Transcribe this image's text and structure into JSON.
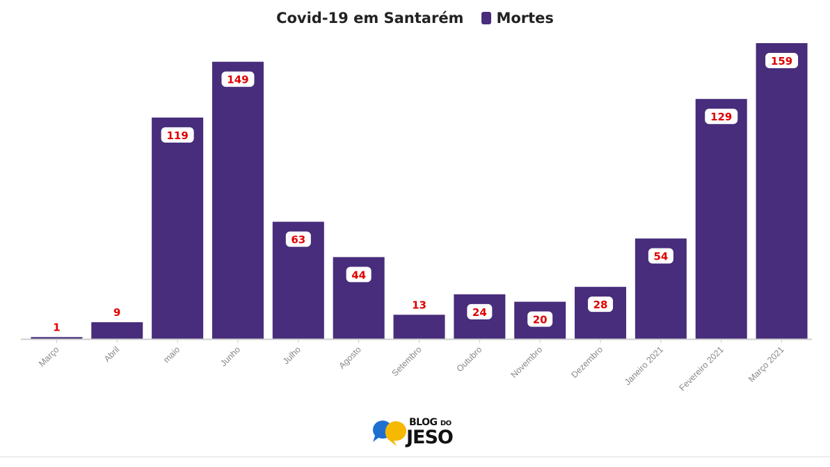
{
  "chart_data": {
    "type": "bar",
    "title": "Covid-19 em Santarém",
    "categories": [
      "Março",
      "Abril",
      "maio",
      "Junho",
      "Julho",
      "Agosto",
      "Setembro",
      "Outubro",
      "Novembro",
      "Dezembro",
      "Janeiro 2021",
      "Fevereiro 2021",
      "Março 2021"
    ],
    "series": [
      {
        "name": "Mortes",
        "values": [
          1,
          9,
          119,
          149,
          63,
          44,
          13,
          24,
          20,
          28,
          54,
          129,
          159
        ]
      }
    ],
    "ylim": [
      0,
      159
    ],
    "grid": false,
    "legend_position": "top",
    "colors": {
      "bar": "#472d7b",
      "label": "#e00000",
      "axis": "#cccccc",
      "tick_label": "#888888"
    }
  },
  "logo": {
    "line1": "BLOG",
    "line1b": "DO",
    "line2": "JESO"
  }
}
